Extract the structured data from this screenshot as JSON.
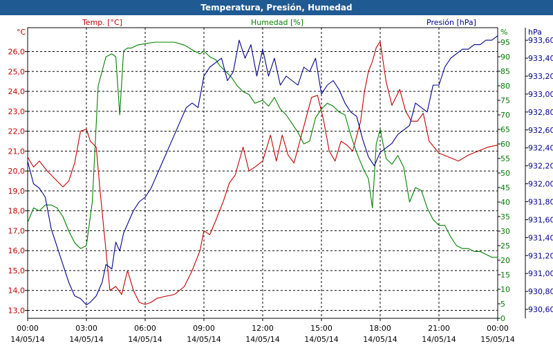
{
  "window": {
    "title": "Temperatura, Presión, Humedad"
  },
  "chart_data": {
    "type": "line",
    "title": "Temperatura, Presión, Humedad",
    "x_ticks": [
      {
        "time": "00:00",
        "date": "14/05/14"
      },
      {
        "time": "03:00",
        "date": "14/05/14"
      },
      {
        "time": "06:00",
        "date": "14/05/14"
      },
      {
        "time": "09:00",
        "date": "14/05/14"
      },
      {
        "time": "12:00",
        "date": "14/05/14"
      },
      {
        "time": "15:00",
        "date": "14/05/14"
      },
      {
        "time": "18:00",
        "date": "14/05/14"
      },
      {
        "time": "21:00",
        "date": "14/05/14"
      },
      {
        "time": "00:00",
        "date": "15/05/14"
      }
    ],
    "x_range_hours": [
      0,
      24
    ],
    "grid": true,
    "axes": {
      "temperature": {
        "label": "Temp. [°C]",
        "unit": "°C",
        "color": "#c00000",
        "side": "left",
        "range": [
          12.6,
          27.2
        ],
        "ticks": [
          "13,0",
          "14,0",
          "15,0",
          "16,0",
          "17,0",
          "18,0",
          "19,0",
          "20,0",
          "21,0",
          "22,0",
          "23,0",
          "24,0",
          "25,0",
          "26,0"
        ],
        "tick_values": [
          13,
          14,
          15,
          16,
          17,
          18,
          19,
          20,
          21,
          22,
          23,
          24,
          25,
          26
        ]
      },
      "humidity": {
        "label": "Humedad [%]",
        "unit": "%",
        "color": "#008000",
        "side": "right-inner",
        "range": [
          0,
          100
        ],
        "ticks": [
          "0",
          "5",
          "10",
          "15",
          "20",
          "25",
          "30",
          "35",
          "40",
          "45",
          "50",
          "55",
          "60",
          "65",
          "70",
          "75",
          "80",
          "85",
          "90",
          "95"
        ],
        "tick_values": [
          0,
          5,
          10,
          15,
          20,
          25,
          30,
          35,
          40,
          45,
          50,
          55,
          60,
          65,
          70,
          75,
          80,
          85,
          90,
          95
        ]
      },
      "pressure": {
        "label": "Presión [hPa]",
        "unit": "hPa",
        "color": "#00008b",
        "side": "right-outer",
        "range": [
          930.5,
          933.74
        ],
        "ticks": [
          "930,60",
          "930,80",
          "931,00",
          "931,20",
          "931,40",
          "931,60",
          "931,80",
          "932,00",
          "932,20",
          "932,40",
          "932,60",
          "932,80",
          "933,00",
          "933,20",
          "933,40",
          "933,60"
        ],
        "tick_values": [
          930.6,
          930.8,
          931.0,
          931.2,
          931.4,
          931.6,
          931.8,
          932.0,
          932.2,
          932.4,
          932.6,
          932.8,
          933.0,
          933.2,
          933.4,
          933.6
        ]
      }
    },
    "series": [
      {
        "name": "Temp. [°C]",
        "axis": "temperature",
        "color": "#c00000",
        "x": [
          0,
          0.3,
          0.6,
          1.0,
          1.4,
          1.8,
          2.1,
          2.4,
          2.7,
          3.0,
          3.2,
          3.5,
          3.7,
          4.0,
          4.2,
          4.5,
          4.8,
          5.1,
          5.4,
          5.7,
          6.0,
          6.3,
          6.6,
          7.0,
          7.5,
          8.0,
          8.4,
          8.8,
          9.0,
          9.3,
          9.6,
          10.0,
          10.3,
          10.6,
          11.0,
          11.3,
          11.6,
          12.0,
          12.4,
          12.7,
          13.0,
          13.3,
          13.6,
          13.9,
          14.2,
          14.5,
          14.8,
          15.1,
          15.4,
          15.7,
          16.0,
          16.3,
          16.6,
          17.0,
          17.2,
          17.4,
          17.6,
          17.8,
          18.0,
          18.3,
          18.6,
          19.0,
          19.3,
          19.6,
          19.9,
          20.2,
          20.5,
          21.0,
          21.5,
          22.0,
          22.5,
          23.0,
          23.5,
          24.0
        ],
        "y": [
          20.7,
          20.2,
          20.5,
          20.0,
          19.6,
          19.2,
          19.5,
          20.4,
          22.0,
          22.1,
          21.5,
          21.2,
          19.0,
          16.0,
          14.0,
          14.2,
          13.8,
          15.0,
          14.0,
          13.4,
          13.3,
          13.4,
          13.6,
          13.7,
          13.8,
          14.2,
          15.0,
          16.0,
          17.0,
          16.8,
          17.5,
          18.5,
          19.4,
          19.8,
          21.2,
          20.0,
          20.2,
          20.5,
          21.8,
          20.5,
          21.8,
          20.8,
          20.4,
          21.5,
          22.6,
          23.7,
          23.8,
          22.6,
          21.0,
          20.5,
          21.5,
          21.3,
          21.0,
          22.5,
          24.0,
          25.0,
          25.5,
          26.2,
          26.5,
          24.5,
          23.3,
          24.1,
          23.0,
          22.5,
          22.5,
          22.9,
          21.5,
          20.9,
          20.7,
          20.5,
          20.8,
          21.0,
          21.2,
          21.3
        ]
      },
      {
        "name": "Humedad [%]",
        "axis": "humidity",
        "color": "#008000",
        "x": [
          0,
          0.3,
          0.6,
          0.9,
          1.2,
          1.5,
          1.8,
          2.1,
          2.4,
          2.7,
          3.0,
          3.3,
          3.6,
          4.0,
          4.3,
          4.5,
          4.7,
          4.9,
          5.1,
          5.3,
          5.6,
          6.0,
          6.5,
          7.0,
          7.5,
          8.0,
          8.5,
          8.8,
          9.0,
          9.3,
          9.6,
          9.8,
          10.1,
          10.4,
          10.7,
          11.0,
          11.3,
          11.6,
          12.0,
          12.3,
          12.6,
          12.9,
          13.2,
          13.5,
          13.8,
          14.1,
          14.4,
          14.7,
          15.0,
          15.3,
          15.6,
          15.9,
          16.2,
          16.5,
          16.8,
          17.1,
          17.4,
          17.6,
          17.8,
          18.0,
          18.3,
          18.6,
          18.9,
          19.2,
          19.5,
          19.8,
          20.1,
          20.4,
          20.7,
          21.0,
          21.3,
          21.6,
          21.9,
          22.2,
          22.5,
          22.8,
          23.1,
          23.4,
          23.7,
          24.0
        ],
        "y": [
          33,
          38,
          37,
          39,
          39,
          38,
          35,
          30,
          26,
          24,
          25,
          40,
          80,
          90,
          91,
          90,
          70,
          92,
          93,
          93,
          94,
          94.5,
          95,
          95,
          95,
          94,
          92,
          91,
          92,
          90,
          89,
          87,
          85,
          83,
          80,
          78,
          77,
          74,
          75,
          73,
          76,
          72,
          70,
          67,
          64,
          60,
          61,
          69,
          72,
          74,
          73,
          71,
          70,
          63,
          57,
          52,
          48,
          38,
          60,
          65,
          55,
          53,
          56,
          52,
          40,
          45,
          44,
          38,
          34,
          32,
          32,
          28,
          25,
          24,
          24,
          23,
          23,
          22,
          21,
          21
        ]
      },
      {
        "name": "Presión [hPa]",
        "axis": "pressure",
        "color": "#00008b",
        "x": [
          0,
          0.3,
          0.6,
          0.9,
          1.2,
          1.5,
          1.8,
          2.1,
          2.4,
          2.7,
          3.0,
          3.2,
          3.5,
          3.8,
          4.0,
          4.3,
          4.5,
          4.7,
          4.9,
          5.1,
          5.4,
          5.7,
          6.0,
          6.3,
          6.6,
          6.9,
          7.2,
          7.5,
          7.8,
          8.1,
          8.4,
          8.7,
          9.0,
          9.3,
          9.6,
          9.9,
          10.2,
          10.5,
          10.8,
          11.1,
          11.4,
          11.7,
          12.0,
          12.3,
          12.6,
          12.9,
          13.2,
          13.5,
          13.8,
          14.1,
          14.4,
          14.7,
          15.0,
          15.3,
          15.6,
          15.9,
          16.2,
          16.5,
          16.8,
          17.1,
          17.4,
          17.7,
          18.0,
          18.3,
          18.6,
          18.9,
          19.2,
          19.5,
          19.8,
          20.1,
          20.4,
          20.7,
          21.0,
          21.3,
          21.6,
          21.9,
          22.2,
          22.5,
          22.8,
          23.1,
          23.4,
          23.7,
          24.0
        ],
        "y": [
          932.25,
          932.0,
          931.95,
          931.85,
          931.5,
          931.3,
          931.1,
          930.9,
          930.75,
          930.72,
          930.65,
          930.68,
          930.75,
          930.9,
          931.1,
          931.05,
          931.35,
          931.25,
          931.45,
          931.55,
          931.7,
          931.8,
          931.85,
          931.95,
          932.1,
          932.25,
          932.4,
          932.55,
          932.7,
          932.85,
          932.9,
          932.85,
          933.2,
          933.3,
          933.35,
          933.4,
          933.15,
          933.25,
          933.6,
          933.4,
          933.55,
          933.2,
          933.5,
          933.2,
          933.4,
          933.1,
          933.2,
          933.15,
          933.1,
          933.3,
          933.25,
          933.4,
          933.0,
          933.1,
          933.15,
          933.05,
          932.9,
          932.8,
          932.75,
          932.5,
          932.3,
          932.2,
          932.35,
          932.4,
          932.45,
          932.55,
          932.6,
          932.65,
          932.9,
          932.85,
          932.8,
          933.1,
          933.1,
          933.3,
          933.4,
          933.45,
          933.5,
          933.5,
          933.55,
          933.55,
          933.6,
          933.6,
          933.65
        ]
      }
    ]
  }
}
